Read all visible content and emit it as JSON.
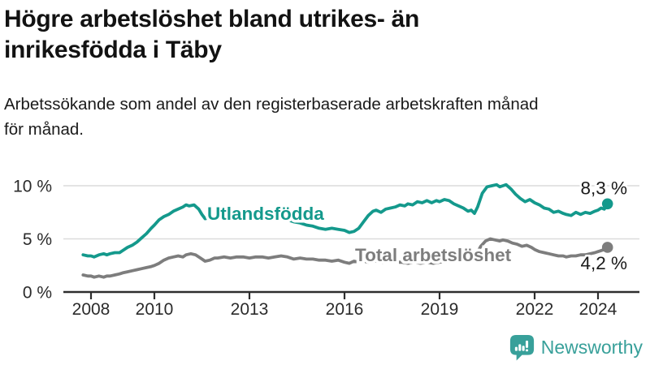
{
  "header": {
    "title": "Högre arbetslöshet bland utrikes- än inrikesfödda i Täby",
    "title_lines": [
      "Högre arbetslöshet bland utrikes- än",
      "inrikesfödda i Täby"
    ],
    "subtitle": "Arbetssökande som andel av den registerbaserade arbetskraften månad för månad.",
    "subtitle_lines": [
      "Arbetssökande som andel av den registerbaserade arbetskraften månad",
      "för månad."
    ]
  },
  "footer": {
    "brand": "Newsworthy",
    "brand_color": "#38a09a"
  },
  "chart_data": {
    "type": "line",
    "title": "Högre arbetslöshet bland utrikes- än inrikesfödda i Täby",
    "xlabel": "",
    "ylabel": "Arbetssökande som andel av den registerbaserade arbetskraften",
    "xlim": [
      2007.75,
      2024.8
    ],
    "ylim": [
      0,
      10.5
    ],
    "grid": "horizontal-only",
    "legend_position": "inline-labels",
    "style": {
      "grid_color": "#dcdcdc",
      "axis_color": "#2e2e2e",
      "tick_text_color": "#2b2b2b",
      "end_value_color": "#1a1a1a",
      "background": "#ffffff"
    },
    "yticks": [
      {
        "value": 0,
        "label": "0 %"
      },
      {
        "value": 5,
        "label": "5 %"
      },
      {
        "value": 10,
        "label": "10 %"
      }
    ],
    "xticks": [
      {
        "value": 2008,
        "label": "2008"
      },
      {
        "value": 2010,
        "label": "2010"
      },
      {
        "value": 2013,
        "label": "2013"
      },
      {
        "value": 2016,
        "label": "2016"
      },
      {
        "value": 2019,
        "label": "2019"
      },
      {
        "value": 2022,
        "label": "2022"
      },
      {
        "value": 2024,
        "label": "2024"
      }
    ],
    "series": [
      {
        "name": "Utlandsfödda",
        "color": "#14998c",
        "end_label": "8,3 %",
        "end_value": 8.3,
        "points": [
          [
            2007.75,
            3.5
          ],
          [
            2007.9,
            3.4
          ],
          [
            2008.0,
            3.4
          ],
          [
            2008.1,
            3.3
          ],
          [
            2008.25,
            3.5
          ],
          [
            2008.4,
            3.6
          ],
          [
            2008.5,
            3.5
          ],
          [
            2008.6,
            3.6
          ],
          [
            2008.75,
            3.7
          ],
          [
            2008.9,
            3.7
          ],
          [
            2009.0,
            3.9
          ],
          [
            2009.15,
            4.2
          ],
          [
            2009.3,
            4.4
          ],
          [
            2009.45,
            4.7
          ],
          [
            2009.6,
            5.1
          ],
          [
            2009.75,
            5.5
          ],
          [
            2009.9,
            6.0
          ],
          [
            2010.0,
            6.3
          ],
          [
            2010.15,
            6.8
          ],
          [
            2010.3,
            7.1
          ],
          [
            2010.45,
            7.3
          ],
          [
            2010.6,
            7.6
          ],
          [
            2010.75,
            7.8
          ],
          [
            2010.9,
            8.0
          ],
          [
            2011.0,
            8.2
          ],
          [
            2011.1,
            8.1
          ],
          [
            2011.25,
            8.2
          ],
          [
            2011.4,
            7.8
          ],
          [
            2011.5,
            7.3
          ],
          [
            2011.6,
            6.9
          ],
          [
            2011.75,
            7.0
          ],
          [
            2011.9,
            7.3
          ],
          [
            2012.0,
            7.5
          ],
          [
            2012.2,
            7.4
          ],
          [
            2012.4,
            7.5
          ],
          [
            2012.6,
            7.4
          ],
          [
            2012.8,
            7.5
          ],
          [
            2013.0,
            7.4
          ],
          [
            2013.2,
            7.5
          ],
          [
            2013.4,
            7.3
          ],
          [
            2013.6,
            7.2
          ],
          [
            2013.8,
            7.1
          ],
          [
            2014.0,
            7.0
          ],
          [
            2014.2,
            6.8
          ],
          [
            2014.4,
            6.6
          ],
          [
            2014.6,
            6.5
          ],
          [
            2014.8,
            6.3
          ],
          [
            2015.0,
            6.2
          ],
          [
            2015.2,
            6.0
          ],
          [
            2015.4,
            5.9
          ],
          [
            2015.6,
            6.0
          ],
          [
            2015.8,
            5.9
          ],
          [
            2016.0,
            5.8
          ],
          [
            2016.15,
            5.6
          ],
          [
            2016.3,
            5.7
          ],
          [
            2016.45,
            6.0
          ],
          [
            2016.6,
            6.6
          ],
          [
            2016.75,
            7.2
          ],
          [
            2016.9,
            7.6
          ],
          [
            2017.0,
            7.7
          ],
          [
            2017.15,
            7.5
          ],
          [
            2017.3,
            7.8
          ],
          [
            2017.45,
            7.9
          ],
          [
            2017.6,
            8.0
          ],
          [
            2017.75,
            8.2
          ],
          [
            2017.9,
            8.1
          ],
          [
            2018.0,
            8.3
          ],
          [
            2018.15,
            8.2
          ],
          [
            2018.3,
            8.5
          ],
          [
            2018.45,
            8.4
          ],
          [
            2018.6,
            8.6
          ],
          [
            2018.75,
            8.4
          ],
          [
            2018.9,
            8.6
          ],
          [
            2019.0,
            8.5
          ],
          [
            2019.15,
            8.7
          ],
          [
            2019.3,
            8.6
          ],
          [
            2019.45,
            8.3
          ],
          [
            2019.6,
            8.1
          ],
          [
            2019.75,
            7.9
          ],
          [
            2019.9,
            7.6
          ],
          [
            2020.0,
            7.7
          ],
          [
            2020.1,
            7.4
          ],
          [
            2020.2,
            8.0
          ],
          [
            2020.35,
            9.3
          ],
          [
            2020.5,
            9.9
          ],
          [
            2020.65,
            10.0
          ],
          [
            2020.8,
            10.1
          ],
          [
            2020.9,
            9.9
          ],
          [
            2021.0,
            10.0
          ],
          [
            2021.1,
            10.1
          ],
          [
            2021.25,
            9.7
          ],
          [
            2021.4,
            9.2
          ],
          [
            2021.55,
            8.8
          ],
          [
            2021.7,
            8.5
          ],
          [
            2021.85,
            8.7
          ],
          [
            2022.0,
            8.4
          ],
          [
            2022.15,
            8.2
          ],
          [
            2022.3,
            7.9
          ],
          [
            2022.45,
            7.8
          ],
          [
            2022.6,
            7.5
          ],
          [
            2022.75,
            7.6
          ],
          [
            2022.9,
            7.4
          ],
          [
            2023.0,
            7.3
          ],
          [
            2023.15,
            7.2
          ],
          [
            2023.3,
            7.5
          ],
          [
            2023.45,
            7.3
          ],
          [
            2023.6,
            7.5
          ],
          [
            2023.75,
            7.4
          ],
          [
            2023.9,
            7.6
          ],
          [
            2024.0,
            7.7
          ],
          [
            2024.1,
            7.9
          ],
          [
            2024.2,
            7.8
          ],
          [
            2024.3,
            8.3
          ]
        ]
      },
      {
        "name": "Total arbetslöshet",
        "color": "#7d7d7d",
        "end_label": "4,2 %",
        "end_value": 4.2,
        "points": [
          [
            2007.75,
            1.6
          ],
          [
            2007.9,
            1.5
          ],
          [
            2008.0,
            1.5
          ],
          [
            2008.1,
            1.4
          ],
          [
            2008.25,
            1.5
          ],
          [
            2008.4,
            1.4
          ],
          [
            2008.5,
            1.5
          ],
          [
            2008.6,
            1.5
          ],
          [
            2008.75,
            1.6
          ],
          [
            2008.9,
            1.7
          ],
          [
            2009.0,
            1.8
          ],
          [
            2009.15,
            1.9
          ],
          [
            2009.3,
            2.0
          ],
          [
            2009.45,
            2.1
          ],
          [
            2009.6,
            2.2
          ],
          [
            2009.75,
            2.3
          ],
          [
            2009.9,
            2.4
          ],
          [
            2010.0,
            2.5
          ],
          [
            2010.15,
            2.7
          ],
          [
            2010.3,
            3.0
          ],
          [
            2010.45,
            3.2
          ],
          [
            2010.6,
            3.3
          ],
          [
            2010.75,
            3.4
          ],
          [
            2010.9,
            3.3
          ],
          [
            2011.0,
            3.5
          ],
          [
            2011.15,
            3.6
          ],
          [
            2011.3,
            3.5
          ],
          [
            2011.45,
            3.2
          ],
          [
            2011.6,
            2.9
          ],
          [
            2011.75,
            3.0
          ],
          [
            2011.9,
            3.2
          ],
          [
            2012.0,
            3.2
          ],
          [
            2012.2,
            3.3
          ],
          [
            2012.4,
            3.2
          ],
          [
            2012.6,
            3.3
          ],
          [
            2012.8,
            3.3
          ],
          [
            2013.0,
            3.2
          ],
          [
            2013.2,
            3.3
          ],
          [
            2013.4,
            3.3
          ],
          [
            2013.6,
            3.2
          ],
          [
            2013.8,
            3.3
          ],
          [
            2014.0,
            3.4
          ],
          [
            2014.2,
            3.3
          ],
          [
            2014.4,
            3.1
          ],
          [
            2014.6,
            3.2
          ],
          [
            2014.8,
            3.1
          ],
          [
            2015.0,
            3.1
          ],
          [
            2015.2,
            3.0
          ],
          [
            2015.4,
            3.0
          ],
          [
            2015.6,
            2.9
          ],
          [
            2015.8,
            3.0
          ],
          [
            2016.0,
            2.8
          ],
          [
            2016.15,
            2.7
          ],
          [
            2016.3,
            2.9
          ],
          [
            2016.45,
            2.8
          ],
          [
            2016.6,
            2.9
          ],
          [
            2016.75,
            2.8
          ],
          [
            2016.9,
            2.9
          ],
          [
            2017.0,
            2.9
          ],
          [
            2017.2,
            2.8
          ],
          [
            2017.4,
            2.9
          ],
          [
            2017.6,
            2.8
          ],
          [
            2017.8,
            2.8
          ],
          [
            2018.0,
            2.7
          ],
          [
            2018.2,
            2.8
          ],
          [
            2018.4,
            2.7
          ],
          [
            2018.6,
            2.8
          ],
          [
            2018.8,
            2.7
          ],
          [
            2019.0,
            2.8
          ],
          [
            2019.2,
            2.9
          ],
          [
            2019.4,
            2.8
          ],
          [
            2019.6,
            2.9
          ],
          [
            2019.8,
            3.0
          ],
          [
            2020.0,
            3.1
          ],
          [
            2020.15,
            3.5
          ],
          [
            2020.3,
            4.3
          ],
          [
            2020.45,
            4.8
          ],
          [
            2020.6,
            5.0
          ],
          [
            2020.75,
            4.9
          ],
          [
            2020.9,
            4.8
          ],
          [
            2021.0,
            4.9
          ],
          [
            2021.15,
            4.8
          ],
          [
            2021.3,
            4.6
          ],
          [
            2021.45,
            4.5
          ],
          [
            2021.6,
            4.3
          ],
          [
            2021.75,
            4.4
          ],
          [
            2021.9,
            4.2
          ],
          [
            2022.0,
            4.0
          ],
          [
            2022.15,
            3.8
          ],
          [
            2022.3,
            3.7
          ],
          [
            2022.45,
            3.6
          ],
          [
            2022.6,
            3.5
          ],
          [
            2022.75,
            3.4
          ],
          [
            2022.9,
            3.4
          ],
          [
            2023.0,
            3.3
          ],
          [
            2023.15,
            3.4
          ],
          [
            2023.3,
            3.4
          ],
          [
            2023.45,
            3.5
          ],
          [
            2023.6,
            3.5
          ],
          [
            2023.75,
            3.6
          ],
          [
            2023.9,
            3.7
          ],
          [
            2024.0,
            3.8
          ],
          [
            2024.1,
            3.9
          ],
          [
            2024.2,
            4.0
          ],
          [
            2024.3,
            4.2
          ]
        ]
      }
    ]
  }
}
